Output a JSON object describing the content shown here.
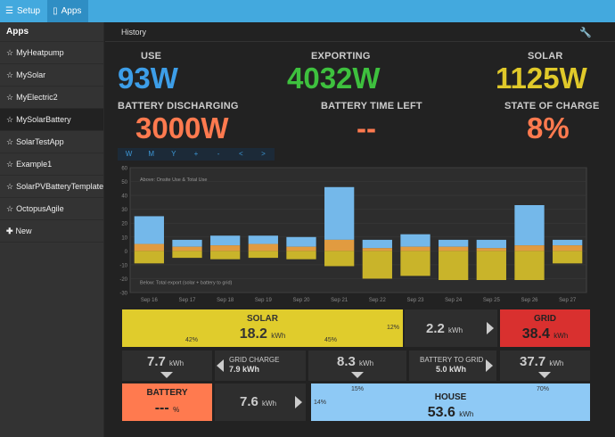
{
  "topbar": {
    "setup_label": "Setup",
    "apps_label": "Apps"
  },
  "sidebar": {
    "heading": "Apps",
    "items": [
      {
        "label": "MyHeatpump"
      },
      {
        "label": "MySolar"
      },
      {
        "label": "MyElectric2"
      },
      {
        "label": "MySolarBattery"
      },
      {
        "label": "SolarTestApp"
      },
      {
        "label": "Example1"
      },
      {
        "label": "SolarPVBatteryTemplate"
      },
      {
        "label": "OctopusAgile"
      }
    ],
    "new_label": "New"
  },
  "header": {
    "title": "History"
  },
  "stats": {
    "use_label": "USE",
    "use_value": "93W",
    "exporting_label": "EXPORTING",
    "exporting_value": "4032W",
    "solar_label": "SOLAR",
    "solar_value": "1125W",
    "battery_label": "BATTERY DISCHARGING",
    "battery_value": "3000W",
    "time_left_label": "BATTERY TIME LEFT",
    "time_left_value": "--",
    "soc_label": "STATE OF CHARGE",
    "soc_value": "8%"
  },
  "colors": {
    "use": "#3d9ee8",
    "exporting": "#3ec13e",
    "solar": "#e0c92a",
    "battery": "#ff7a4f"
  },
  "zoom_controls": [
    "W",
    "M",
    "Y",
    "+",
    "-",
    "<",
    ">"
  ],
  "chart_data": {
    "type": "bar",
    "categories": [
      "Sep 16",
      "Sep 17",
      "Sep 18",
      "Sep 19",
      "Sep 20",
      "Sep 21",
      "Sep 22",
      "Sep 23",
      "Sep 24",
      "Sep 25",
      "Sep 26",
      "Sep 27"
    ],
    "ylim": [
      -30,
      60
    ],
    "yticks": [
      60,
      50,
      40,
      30,
      20,
      10,
      0,
      -10,
      -20,
      -30
    ],
    "annotation_above": "Above: Onsite Use & Total Use",
    "annotation_below": "Below: Total export (solar + battery to grid)",
    "series": [
      {
        "values": [
          25,
          8,
          11,
          11,
          10,
          46,
          8,
          12,
          8,
          8,
          33,
          8
        ]
      },
      {
        "values": [
          5,
          3,
          4,
          5,
          3,
          8,
          2,
          3,
          3,
          2,
          4,
          4
        ]
      },
      {
        "values": [
          -9,
          -5,
          -6,
          -5,
          -6,
          -11,
          -20,
          -18,
          -21,
          -21,
          -21,
          -9
        ]
      }
    ],
    "grid": true
  },
  "flows": {
    "solar_label": "SOLAR",
    "solar_value": "18.2",
    "solar_pct_left": "42%",
    "solar_pct_mid": "45%",
    "solar_pct_right": "12%",
    "solar_to_grid_value": "2.2",
    "grid_label": "GRID",
    "grid_value": "38.4",
    "solar_down_value": "7.7",
    "grid_charge_label": "GRID CHARGE",
    "grid_charge_value": "7.9 kWh",
    "solar_to_house_value": "8.3",
    "battery_to_grid_label": "BATTERY TO GRID",
    "battery_to_grid_value": "5.0 kWh",
    "grid_down_value": "37.7",
    "battery_label": "BATTERY",
    "battery_value": "---",
    "battery_unit": "%",
    "battery_to_house_value": "7.6",
    "house_label": "HOUSE",
    "house_value": "53.6",
    "house_pct_left": "14%",
    "house_pct_mid": "15%",
    "house_pct_right": "70%",
    "unit": "kWh"
  }
}
